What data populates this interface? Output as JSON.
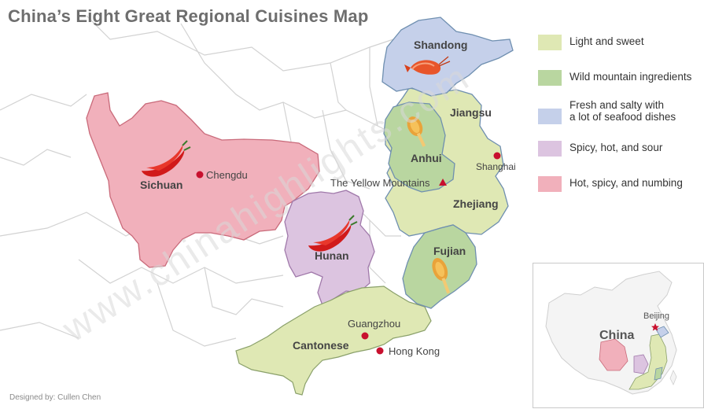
{
  "title": "China’s Eight Great Regional Cuisines Map",
  "credit": "Designed by: Cullen Chen",
  "watermark": "www.chinahighlights.com",
  "colors": {
    "light_sweet": "#dfe8b4",
    "wild_mountain": "#b9d6a0",
    "seafood": "#c5d0ea",
    "spicy_sour": "#dcc4e0",
    "numbing": "#f1b0bb",
    "city_dot": "#c8102e",
    "border_gray": "#cfcfcf",
    "coast_blue": "#6f8fb0"
  },
  "legend": [
    {
      "label": "Light and sweet",
      "color": "#dfe8b4"
    },
    {
      "label": "Wild mountain ingredients",
      "color": "#b9d6a0"
    },
    {
      "label": "Fresh and salty with",
      "label2": "a lot of seafood dishes",
      "color": "#c5d0ea"
    },
    {
      "label": "Spicy, hot, and sour",
      "color": "#dcc4e0"
    },
    {
      "label": "Hot, spicy, and numbing",
      "color": "#f1b0bb"
    }
  ],
  "regions": {
    "shandong": "Shandong",
    "jiangsu": "Jiangsu",
    "anhui": "Anhui",
    "zhejiang": "Zhejiang",
    "fujian": "Fujian",
    "sichuan": "Sichuan",
    "hunan": "Hunan",
    "cantonese": "Cantonese"
  },
  "cities": {
    "chengdu": "Chengdu",
    "shanghai": "Shanghai",
    "guangzhou": "Guangzhou",
    "hong_kong": "Hong Kong"
  },
  "landmark": "The Yellow Mountains",
  "inset": {
    "country": "China",
    "capital": "Beijing"
  },
  "icons": [
    "shrimp-icon",
    "chili-pepper-icon",
    "mushroom-icon"
  ]
}
